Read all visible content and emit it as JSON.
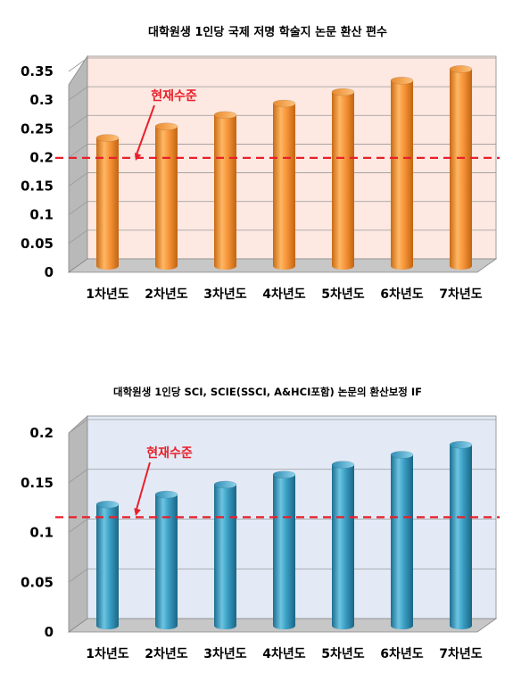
{
  "chart_data": [
    {
      "type": "bar",
      "title": "대학원생 1인당 국제 저명 학술지 논문 환산 편수",
      "categories": [
        "1차년도",
        "2차년도",
        "3차년도",
        "4차년도",
        "5차년도",
        "6차년도",
        "7차년도"
      ],
      "values": [
        0.22,
        0.24,
        0.26,
        0.28,
        0.3,
        0.32,
        0.34
      ],
      "yticks": [
        "0",
        "0.05",
        "0.1",
        "0.15",
        "0.2",
        "0.25",
        "0.3",
        "0.35"
      ],
      "ylim": [
        0,
        0.35
      ],
      "reference_line": {
        "value": 0.19,
        "label": "현재수준",
        "color": "#e8202a"
      },
      "bar_color": "#f39a3c",
      "background_color": "#fde8e2",
      "grid": true
    },
    {
      "type": "bar",
      "title": "대학원생 1인당 SCI, SCIE(SSCI, A&HCI포함) 논문의 환산보정 IF",
      "categories": [
        "1차년도",
        "2차년도",
        "3차년도",
        "4차년도",
        "5차년도",
        "6차년도",
        "7차년도"
      ],
      "values": [
        0.12,
        0.13,
        0.14,
        0.15,
        0.16,
        0.17,
        0.18
      ],
      "yticks": [
        "0",
        "0.05",
        "0.1",
        "0.15",
        "0.2"
      ],
      "ylim": [
        0,
        0.2
      ],
      "reference_line": {
        "value": 0.11,
        "label": "현재수준",
        "color": "#e8202a"
      },
      "bar_color": "#3a9fc4",
      "background_color": "#e3eaf6",
      "grid": true
    }
  ]
}
